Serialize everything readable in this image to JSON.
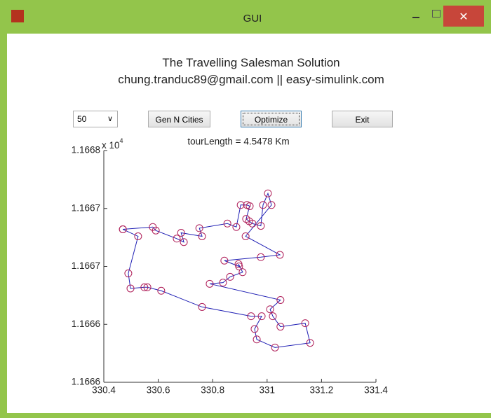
{
  "window": {
    "title": "GUI"
  },
  "header": {
    "title": "The Travelling Salesman Solution",
    "subtitle": "chung.tranduc89@gmail.com || easy-simulink.com"
  },
  "controls": {
    "city_count": "50",
    "buttons": [
      "Gen N Cities",
      "Optimize",
      "Exit"
    ]
  },
  "chart_data": {
    "type": "line",
    "title": "tourLength = 4.5478 Km",
    "axis_multiplier": {
      "base": "x 10",
      "exponent": "4"
    },
    "x": [
      330.47,
      330.58,
      330.591,
      330.668,
      330.694,
      330.684,
      330.761,
      330.751,
      330.854,
      330.887,
      330.903,
      330.926,
      330.936,
      330.923,
      330.934,
      330.946,
      330.977,
      330.985,
      331.003,
      331.016,
      330.921,
      331.047,
      330.977,
      330.843,
      330.897,
      330.895,
      330.91,
      330.864,
      330.838,
      330.789,
      331.049,
      331.011,
      331.021,
      331.049,
      331.14,
      331.158,
      331.029,
      330.962,
      330.954,
      330.98,
      330.941,
      330.761,
      330.611,
      330.56,
      330.549,
      330.498,
      330.49,
      330.526,
      330.47
    ],
    "series": [
      {
        "name": "tour",
        "color": "#1f1fb4",
        "marker_color": "#b0205a",
        "values": [
          11667.32,
          11667.34,
          11667.31,
          11667.24,
          11667.21,
          11667.29,
          11667.26,
          11667.33,
          11667.37,
          11667.34,
          11667.53,
          11667.53,
          11667.52,
          11667.41,
          11667.39,
          11667.37,
          11667.35,
          11667.53,
          11667.63,
          11667.53,
          11667.26,
          11667.1,
          11667.08,
          11667.05,
          11667.0,
          11667.02,
          11666.95,
          11666.91,
          11666.86,
          11666.85,
          11666.71,
          11666.63,
          11666.57,
          11666.48,
          11666.51,
          11666.34,
          11666.3,
          11666.37,
          11666.46,
          11666.57,
          11666.57,
          11666.65,
          11666.79,
          11666.82,
          11666.82,
          11666.81,
          11666.94,
          11667.26,
          11667.32
        ]
      }
    ],
    "xlim": [
      330.4,
      331.4
    ],
    "xticks": [
      330.4,
      330.6,
      330.8,
      331,
      331.2,
      331.4
    ],
    "ylim": [
      11666,
      11668
    ],
    "yticks": [
      {
        "value": 11666,
        "label": "1.1666"
      },
      {
        "value": 11666.5,
        "label": "1.1666"
      },
      {
        "value": 11667,
        "label": "1.1667"
      },
      {
        "value": 11667.5,
        "label": "1.1667"
      },
      {
        "value": 11668,
        "label": "1.1668"
      }
    ],
    "grid": false
  }
}
